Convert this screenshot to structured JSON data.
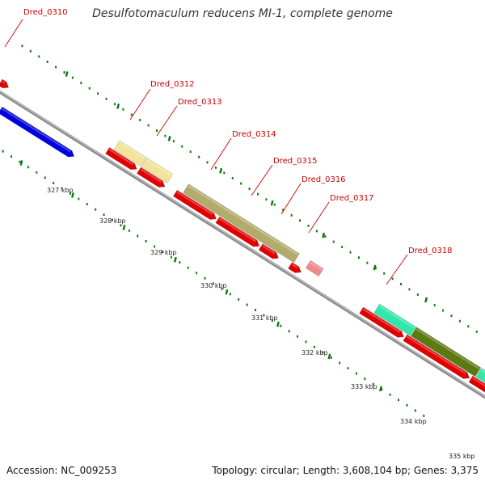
{
  "title": "Desulfotomaculum reducens MI-1, complete genome",
  "footer": {
    "accession": "Accession: NC_009253",
    "summary": "Topology: circular; Length: 3,608,104 bp; Genes: 3,375"
  },
  "gene_labels": [
    "Dred_0310",
    "Dred_0312",
    "Dred_0313",
    "Dred_0314",
    "Dred_0315",
    "Dred_0316",
    "Dred_0317",
    "Dred_0318"
  ],
  "scale_labels": [
    "327 kbp",
    "328 kbp",
    "329 kbp",
    "330 kbp",
    "331 kbp",
    "332 kbp",
    "333 kbp",
    "334 kbp",
    "335 kbp"
  ],
  "colors": {
    "backbone": "#8c8c8c",
    "cds": "#e00000",
    "blue_feature": "#0000dd",
    "pale_yellow": "#f2e49a",
    "olive": "#b2ac6c",
    "pink": "#ef8a8a",
    "aqua": "#33e6aa",
    "dark_olive": "#5c7a12",
    "tick": "#0a7a0a",
    "label_line": "#cc0000"
  }
}
